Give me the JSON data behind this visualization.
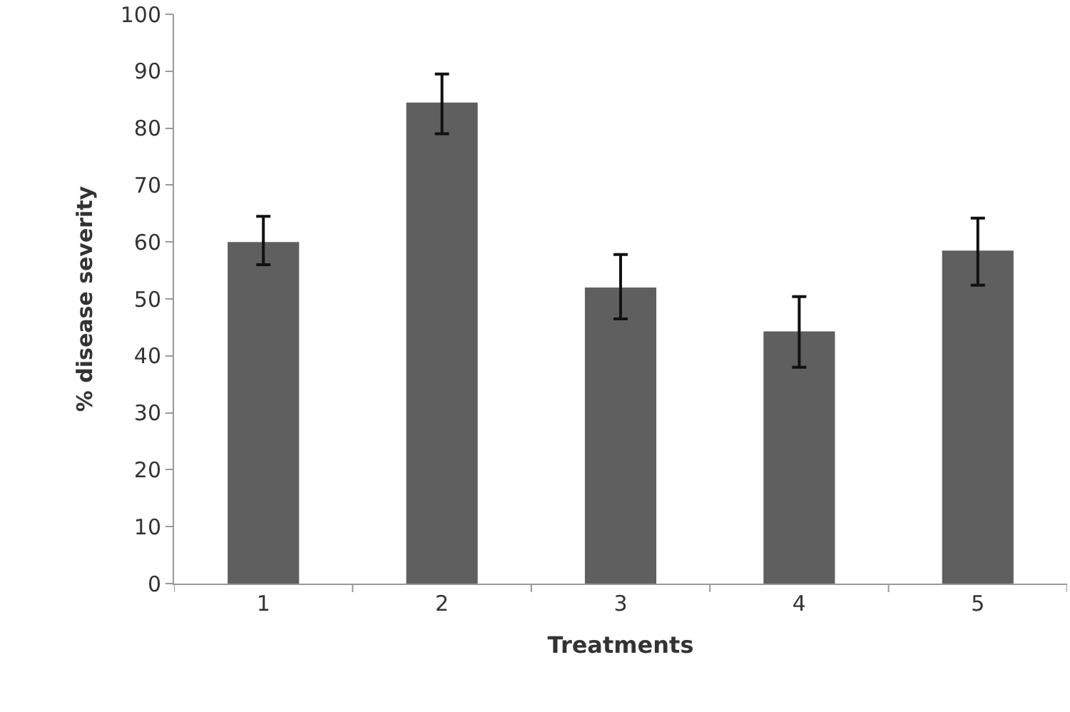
{
  "chart_data": {
    "type": "bar",
    "xlabel": "Treatments",
    "ylabel": "% disease severity",
    "categories": [
      "1",
      "2",
      "3",
      "4",
      "5"
    ],
    "values": [
      60,
      84.5,
      52,
      44.3,
      58.5
    ],
    "errors": [
      [
        56,
        64.5
      ],
      [
        79,
        89.5
      ],
      [
        46.5,
        57.8
      ],
      [
        38,
        50.4
      ],
      [
        52.4,
        64.2
      ]
    ],
    "color": "#5f5f5f",
    "ylim": [
      0,
      100
    ],
    "yticks": [
      0,
      10,
      20,
      30,
      40,
      50,
      60,
      70,
      80,
      90,
      100
    ]
  }
}
